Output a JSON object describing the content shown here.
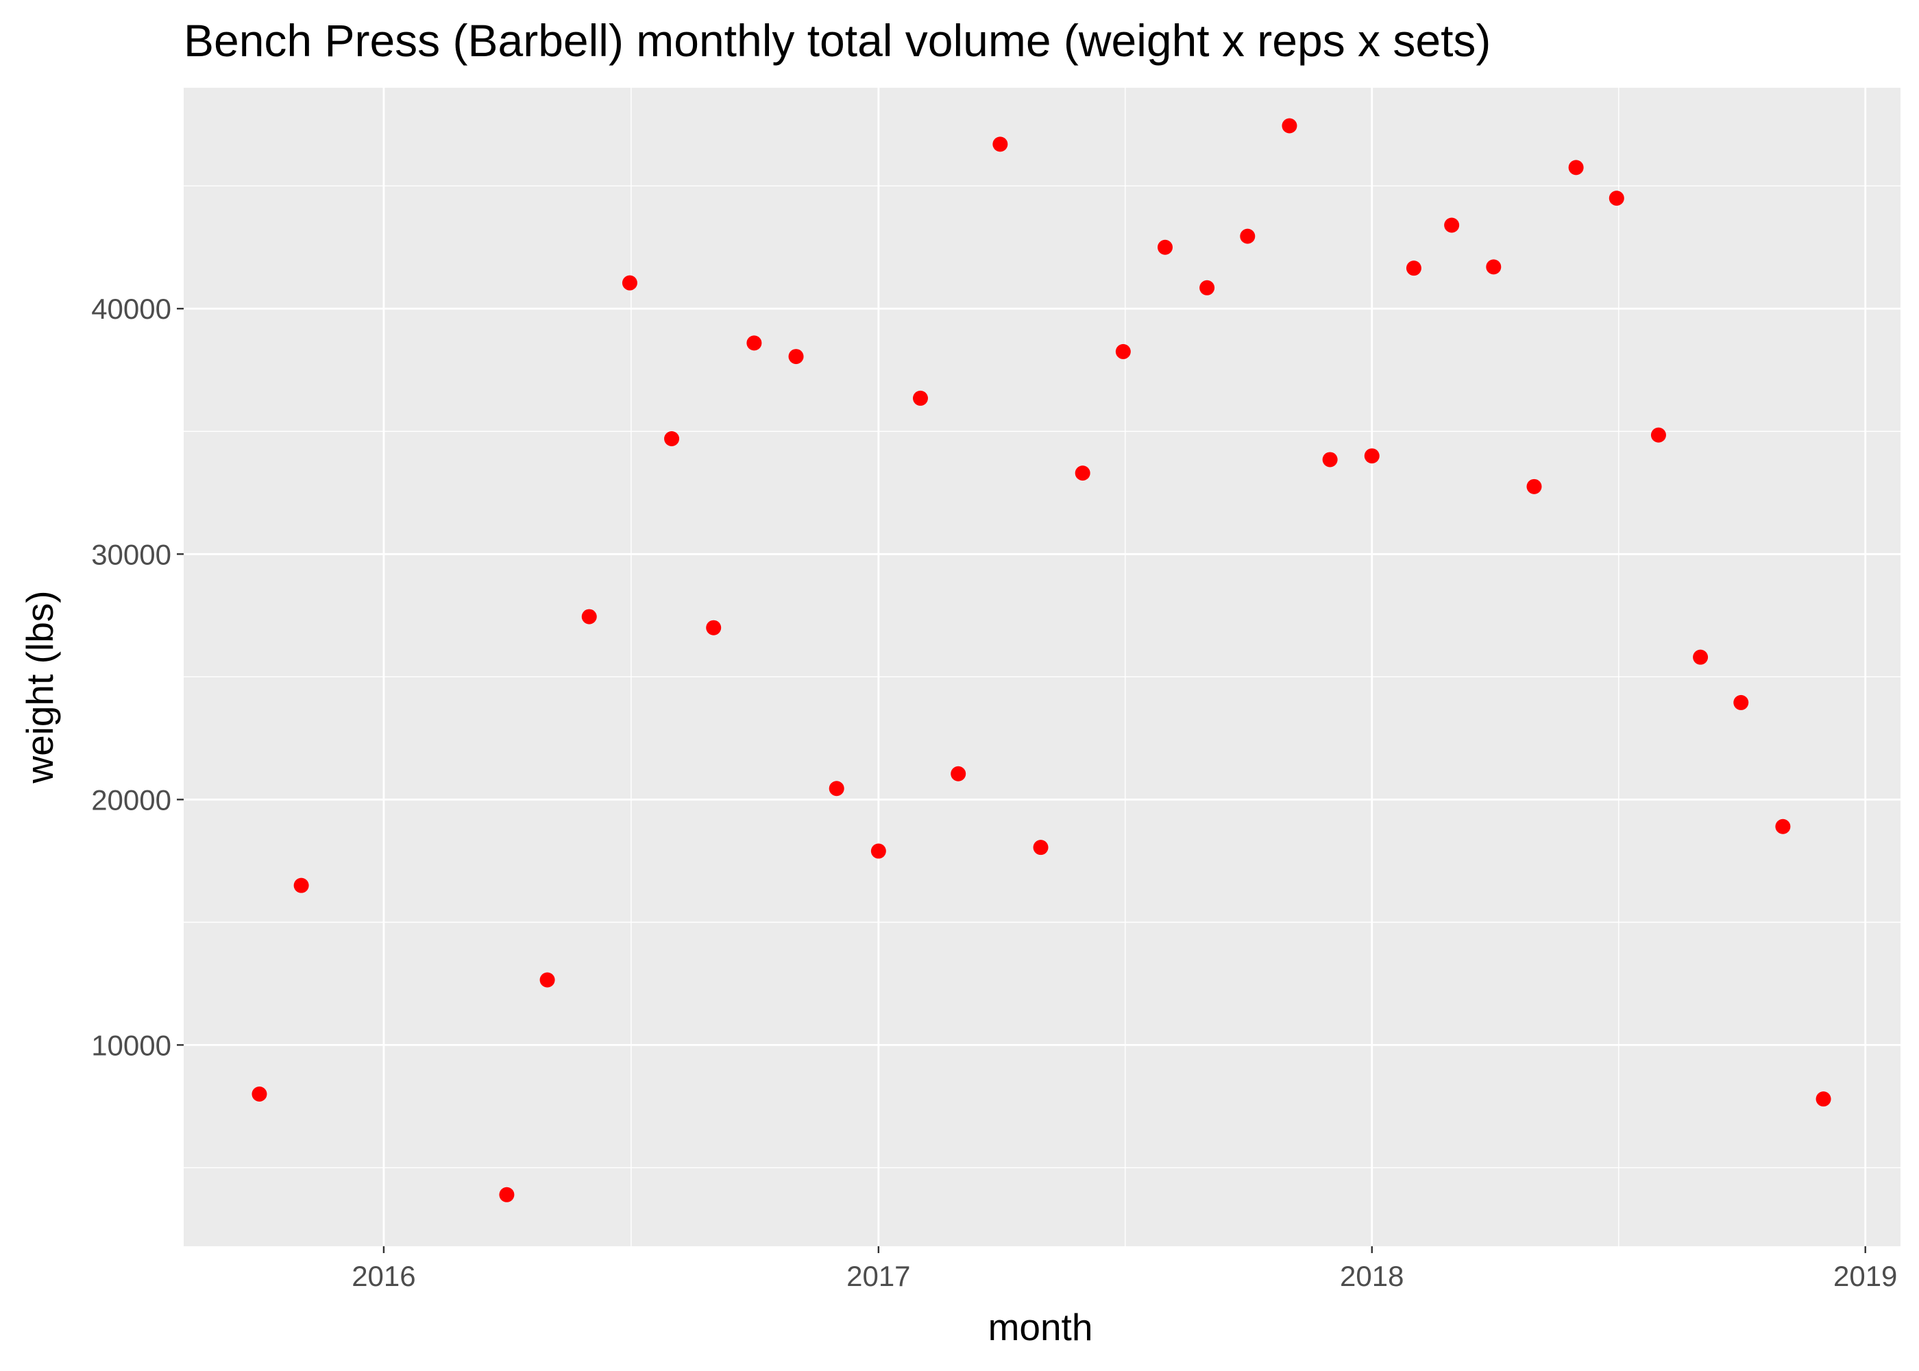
{
  "chart_data": {
    "type": "scatter",
    "title": "Bench Press (Barbell) monthly total volume (weight x reps x sets)",
    "xlabel": "month",
    "ylabel": "weight (lbs)",
    "x_tick_labels": [
      "2016",
      "2017",
      "2018",
      "2019"
    ],
    "y_tick_labels": [
      "10000",
      "20000",
      "30000",
      "40000"
    ],
    "x_ticks": [
      "2016-01-01",
      "2017-01-01",
      "2018-01-01",
      "2019-01-01"
    ],
    "y_ticks": [
      10000,
      20000,
      30000,
      40000
    ],
    "xlim": [
      "2015-08-06",
      "2019-01-27"
    ],
    "ylim": [
      1800,
      49000
    ],
    "grid": true,
    "point_color": "#ff0000",
    "panel_background": "#ebebeb",
    "grid_color": "#ffffff",
    "points": [
      {
        "x": "2015-10-01",
        "y": 8000
      },
      {
        "x": "2015-11-01",
        "y": 16500
      },
      {
        "x": "2016-04-01",
        "y": 3900
      },
      {
        "x": "2016-05-01",
        "y": 12650
      },
      {
        "x": "2016-06-01",
        "y": 27450
      },
      {
        "x": "2016-07-01",
        "y": 41050
      },
      {
        "x": "2016-08-01",
        "y": 34700
      },
      {
        "x": "2016-09-01",
        "y": 27000
      },
      {
        "x": "2016-10-01",
        "y": 38600
      },
      {
        "x": "2016-11-01",
        "y": 38050
      },
      {
        "x": "2016-12-01",
        "y": 20450
      },
      {
        "x": "2017-01-01",
        "y": 17900
      },
      {
        "x": "2017-02-01",
        "y": 36350
      },
      {
        "x": "2017-03-01",
        "y": 21050
      },
      {
        "x": "2017-04-01",
        "y": 46700
      },
      {
        "x": "2017-05-01",
        "y": 18050
      },
      {
        "x": "2017-06-01",
        "y": 33300
      },
      {
        "x": "2017-07-01",
        "y": 38250
      },
      {
        "x": "2017-08-01",
        "y": 42500
      },
      {
        "x": "2017-09-01",
        "y": 40850
      },
      {
        "x": "2017-10-01",
        "y": 42950
      },
      {
        "x": "2017-11-01",
        "y": 47450
      },
      {
        "x": "2017-12-01",
        "y": 33850
      },
      {
        "x": "2018-01-01",
        "y": 34000
      },
      {
        "x": "2018-02-01",
        "y": 41650
      },
      {
        "x": "2018-03-01",
        "y": 43400
      },
      {
        "x": "2018-04-01",
        "y": 41700
      },
      {
        "x": "2018-05-01",
        "y": 32750
      },
      {
        "x": "2018-06-01",
        "y": 45750
      },
      {
        "x": "2018-07-01",
        "y": 44500
      },
      {
        "x": "2018-08-01",
        "y": 34850
      },
      {
        "x": "2018-09-01",
        "y": 25800
      },
      {
        "x": "2018-10-01",
        "y": 23950
      },
      {
        "x": "2018-11-01",
        "y": 18900
      },
      {
        "x": "2018-12-01",
        "y": 7800
      }
    ]
  }
}
